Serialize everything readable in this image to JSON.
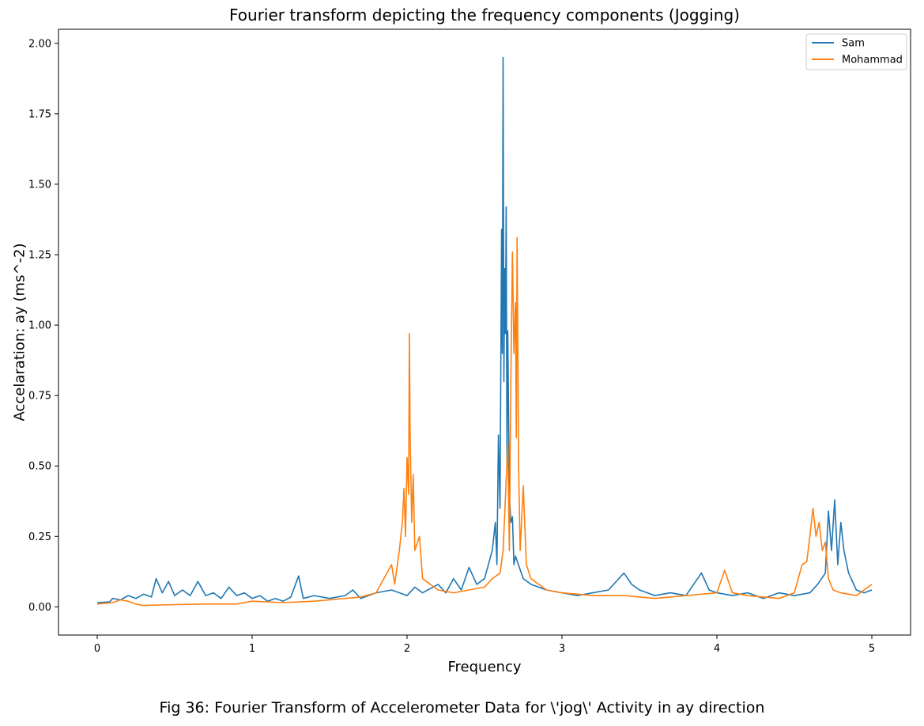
{
  "caption": "Fig 36: Fourier Transform of Accelerometer Data for \\'jog\\' Activity in ay direction",
  "chart_data": {
    "type": "line",
    "title": "Fourier transform depicting the frequency components (Jogging)",
    "xlabel": "Frequency",
    "ylabel": "Accelaration: ay (ms^-2)",
    "xlim": [
      -0.25,
      5.25
    ],
    "ylim": [
      -0.1,
      2.05
    ],
    "xticks": [
      0,
      1,
      2,
      3,
      4,
      5
    ],
    "xtick_labels": [
      "0",
      "1",
      "2",
      "3",
      "4",
      "5"
    ],
    "yticks": [
      0.0,
      0.25,
      0.5,
      0.75,
      1.0,
      1.25,
      1.5,
      1.75,
      2.0
    ],
    "ytick_labels": [
      "0.00",
      "0.25",
      "0.50",
      "0.75",
      "1.00",
      "1.25",
      "1.50",
      "1.75",
      "2.00"
    ],
    "grid": false,
    "legend_position": "top-right",
    "series": [
      {
        "name": "Sam",
        "color": "#1f77b4",
        "points": [
          [
            0.0,
            0.015
          ],
          [
            0.08,
            0.018
          ],
          [
            0.1,
            0.03
          ],
          [
            0.15,
            0.025
          ],
          [
            0.2,
            0.04
          ],
          [
            0.25,
            0.03
          ],
          [
            0.3,
            0.045
          ],
          [
            0.35,
            0.035
          ],
          [
            0.38,
            0.1
          ],
          [
            0.42,
            0.05
          ],
          [
            0.46,
            0.09
          ],
          [
            0.5,
            0.04
          ],
          [
            0.55,
            0.06
          ],
          [
            0.6,
            0.04
          ],
          [
            0.65,
            0.09
          ],
          [
            0.7,
            0.04
          ],
          [
            0.75,
            0.05
          ],
          [
            0.8,
            0.03
          ],
          [
            0.85,
            0.07
          ],
          [
            0.9,
            0.04
          ],
          [
            0.95,
            0.05
          ],
          [
            1.0,
            0.03
          ],
          [
            1.05,
            0.04
          ],
          [
            1.1,
            0.02
          ],
          [
            1.15,
            0.03
          ],
          [
            1.2,
            0.02
          ],
          [
            1.25,
            0.035
          ],
          [
            1.3,
            0.11
          ],
          [
            1.33,
            0.03
          ],
          [
            1.4,
            0.04
          ],
          [
            1.5,
            0.03
          ],
          [
            1.6,
            0.04
          ],
          [
            1.65,
            0.06
          ],
          [
            1.7,
            0.03
          ],
          [
            1.8,
            0.05
          ],
          [
            1.9,
            0.06
          ],
          [
            2.0,
            0.04
          ],
          [
            2.05,
            0.07
          ],
          [
            2.1,
            0.05
          ],
          [
            2.2,
            0.08
          ],
          [
            2.25,
            0.05
          ],
          [
            2.3,
            0.1
          ],
          [
            2.35,
            0.06
          ],
          [
            2.4,
            0.14
          ],
          [
            2.45,
            0.08
          ],
          [
            2.5,
            0.1
          ],
          [
            2.55,
            0.2
          ],
          [
            2.57,
            0.3
          ],
          [
            2.58,
            0.15
          ],
          [
            2.59,
            0.61
          ],
          [
            2.6,
            0.35
          ],
          [
            2.61,
            1.34
          ],
          [
            2.615,
            0.9
          ],
          [
            2.62,
            1.95
          ],
          [
            2.625,
            0.8
          ],
          [
            2.63,
            1.2
          ],
          [
            2.635,
            0.97
          ],
          [
            2.64,
            1.42
          ],
          [
            2.645,
            0.5
          ],
          [
            2.65,
            0.98
          ],
          [
            2.66,
            0.4
          ],
          [
            2.67,
            0.3
          ],
          [
            2.68,
            0.32
          ],
          [
            2.69,
            0.15
          ],
          [
            2.7,
            0.18
          ],
          [
            2.75,
            0.1
          ],
          [
            2.8,
            0.08
          ],
          [
            2.9,
            0.06
          ],
          [
            3.0,
            0.05
          ],
          [
            3.1,
            0.04
          ],
          [
            3.2,
            0.05
          ],
          [
            3.3,
            0.06
          ],
          [
            3.4,
            0.12
          ],
          [
            3.45,
            0.08
          ],
          [
            3.5,
            0.06
          ],
          [
            3.6,
            0.04
          ],
          [
            3.7,
            0.05
          ],
          [
            3.8,
            0.04
          ],
          [
            3.9,
            0.12
          ],
          [
            3.95,
            0.06
          ],
          [
            4.0,
            0.05
          ],
          [
            4.1,
            0.04
          ],
          [
            4.2,
            0.05
          ],
          [
            4.3,
            0.03
          ],
          [
            4.4,
            0.05
          ],
          [
            4.5,
            0.04
          ],
          [
            4.6,
            0.05
          ],
          [
            4.65,
            0.08
          ],
          [
            4.7,
            0.12
          ],
          [
            4.72,
            0.34
          ],
          [
            4.74,
            0.2
          ],
          [
            4.76,
            0.38
          ],
          [
            4.78,
            0.15
          ],
          [
            4.8,
            0.3
          ],
          [
            4.82,
            0.2
          ],
          [
            4.85,
            0.12
          ],
          [
            4.9,
            0.06
          ],
          [
            4.95,
            0.05
          ],
          [
            5.0,
            0.06
          ]
        ]
      },
      {
        "name": "Mohammad",
        "color": "#ff7f0e",
        "points": [
          [
            0.0,
            0.01
          ],
          [
            0.1,
            0.015
          ],
          [
            0.15,
            0.025
          ],
          [
            0.2,
            0.02
          ],
          [
            0.25,
            0.01
          ],
          [
            0.3,
            0.005
          ],
          [
            0.5,
            0.008
          ],
          [
            0.7,
            0.01
          ],
          [
            0.9,
            0.01
          ],
          [
            1.0,
            0.02
          ],
          [
            1.2,
            0.015
          ],
          [
            1.4,
            0.02
          ],
          [
            1.5,
            0.025
          ],
          [
            1.6,
            0.03
          ],
          [
            1.7,
            0.035
          ],
          [
            1.8,
            0.05
          ],
          [
            1.85,
            0.1
          ],
          [
            1.9,
            0.15
          ],
          [
            1.92,
            0.08
          ],
          [
            1.95,
            0.2
          ],
          [
            1.97,
            0.3
          ],
          [
            1.98,
            0.42
          ],
          [
            1.99,
            0.25
          ],
          [
            2.0,
            0.53
          ],
          [
            2.01,
            0.4
          ],
          [
            2.015,
            0.97
          ],
          [
            2.02,
            0.6
          ],
          [
            2.03,
            0.3
          ],
          [
            2.04,
            0.47
          ],
          [
            2.05,
            0.2
          ],
          [
            2.08,
            0.25
          ],
          [
            2.1,
            0.1
          ],
          [
            2.2,
            0.06
          ],
          [
            2.3,
            0.05
          ],
          [
            2.4,
            0.06
          ],
          [
            2.5,
            0.07
          ],
          [
            2.55,
            0.1
          ],
          [
            2.6,
            0.12
          ],
          [
            2.62,
            0.2
          ],
          [
            2.64,
            0.45
          ],
          [
            2.65,
            0.58
          ],
          [
            2.66,
            0.2
          ],
          [
            2.67,
            0.8
          ],
          [
            2.68,
            1.26
          ],
          [
            2.69,
            0.9
          ],
          [
            2.7,
            1.08
          ],
          [
            2.705,
            0.6
          ],
          [
            2.71,
            1.31
          ],
          [
            2.72,
            0.5
          ],
          [
            2.73,
            0.2
          ],
          [
            2.75,
            0.43
          ],
          [
            2.77,
            0.15
          ],
          [
            2.8,
            0.1
          ],
          [
            2.9,
            0.06
          ],
          [
            3.0,
            0.05
          ],
          [
            3.2,
            0.04
          ],
          [
            3.4,
            0.04
          ],
          [
            3.6,
            0.03
          ],
          [
            3.8,
            0.04
          ],
          [
            4.0,
            0.05
          ],
          [
            4.05,
            0.13
          ],
          [
            4.1,
            0.05
          ],
          [
            4.2,
            0.04
          ],
          [
            4.4,
            0.03
          ],
          [
            4.5,
            0.05
          ],
          [
            4.55,
            0.15
          ],
          [
            4.58,
            0.16
          ],
          [
            4.6,
            0.25
          ],
          [
            4.62,
            0.35
          ],
          [
            4.64,
            0.25
          ],
          [
            4.66,
            0.3
          ],
          [
            4.68,
            0.2
          ],
          [
            4.7,
            0.23
          ],
          [
            4.72,
            0.1
          ],
          [
            4.75,
            0.06
          ],
          [
            4.8,
            0.05
          ],
          [
            4.9,
            0.04
          ],
          [
            5.0,
            0.08
          ]
        ]
      }
    ]
  }
}
